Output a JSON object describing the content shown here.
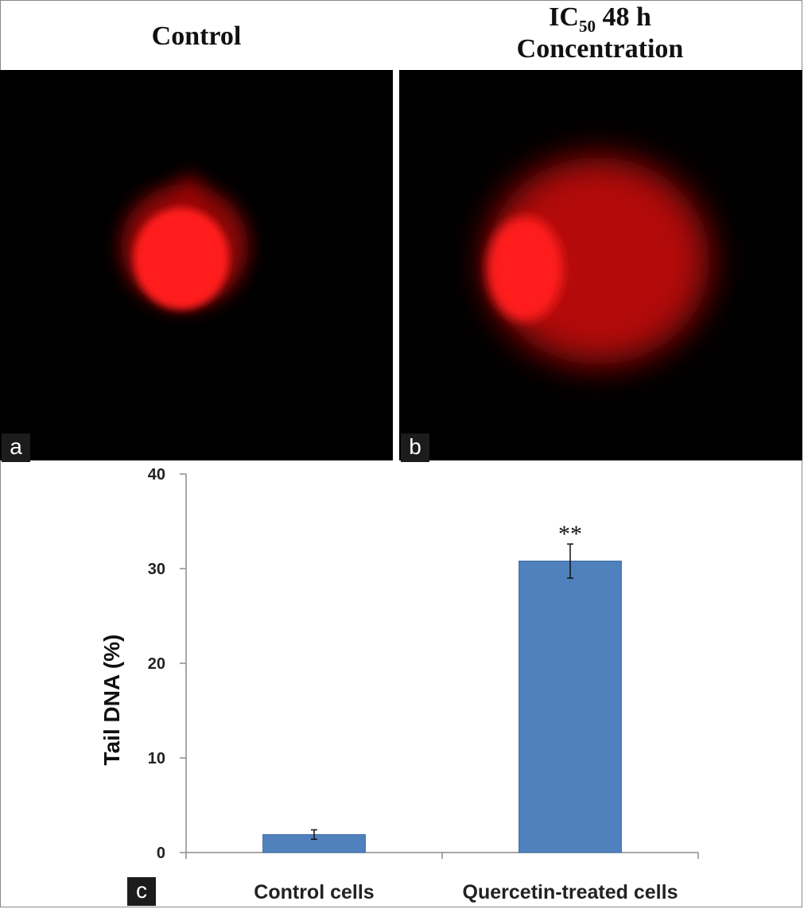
{
  "panels": {
    "a": {
      "letter": "a",
      "title": "Control"
    },
    "b": {
      "letter": "b",
      "title_prefix": "IC",
      "title_subscript": "50",
      "title_suffix": " 48 h",
      "title_line2": "Concentration"
    },
    "c": {
      "letter": "c"
    }
  },
  "colors": {
    "bar": "#4f81bd",
    "bar_edge": "#3b6aa0",
    "axis": "#8c8c8c",
    "comet": "#ff1010"
  },
  "chart_data": {
    "type": "bar",
    "categories": [
      "Control cells",
      "Quercetin-treated cells"
    ],
    "values": [
      1.9,
      30.8
    ],
    "errors": [
      0.5,
      1.8
    ],
    "annotations": [
      "",
      "**"
    ],
    "xlabel": "",
    "ylabel": "Tail DNA (%)",
    "ylim": [
      0,
      40
    ],
    "yticks": [
      0,
      10,
      20,
      30,
      40
    ],
    "grid": false,
    "legend": "none"
  }
}
